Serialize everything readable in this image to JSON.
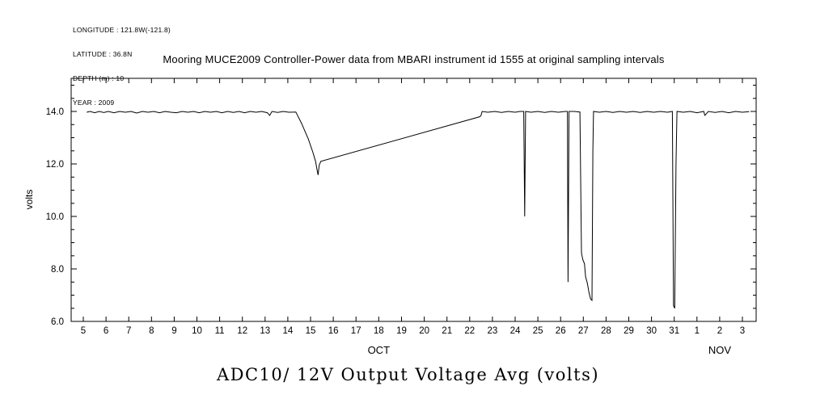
{
  "metadata": {
    "longitude": "LONGITUDE : 121.8W(-121.8)",
    "latitude": "LATITUDE : 36.8N",
    "depth": "DEPTH (m) : 10",
    "year": "YEAR : 2009"
  },
  "title": "Mooring MUCE2009 Controller-Power data from MBARI instrument id 1555 at original sampling intervals",
  "bottom_title": "ADC10/ 12V Output Voltage Avg (volts)",
  "chart_data": {
    "type": "line",
    "title": "Mooring MUCE2009 Controller-Power data from MBARI instrument id 1555 at original sampling intervals",
    "xlabel": "",
    "ylabel": "volts",
    "xlim": [
      4.466,
      34.605
    ],
    "ylim": [
      6.0,
      15.262
    ],
    "grid": false,
    "line_color": "#000000",
    "y_ticks": [
      {
        "v": 6,
        "label": "6.0"
      },
      {
        "v": 8,
        "label": "8.0"
      },
      {
        "v": 10,
        "label": "10.0"
      },
      {
        "v": 12,
        "label": "12.0"
      },
      {
        "v": 14,
        "label": "14.0"
      }
    ],
    "y_minor_step": 0.5,
    "x_tick_days": [
      5,
      6,
      7,
      8,
      9,
      10,
      11,
      12,
      13,
      14,
      15,
      16,
      17,
      18,
      19,
      20,
      21,
      22,
      23,
      24,
      25,
      26,
      27,
      28,
      29,
      30,
      31,
      32,
      33,
      34
    ],
    "x_tick_labels": [
      "5",
      "6",
      "7",
      "8",
      "9",
      "10",
      "11",
      "12",
      "13",
      "14",
      "15",
      "16",
      "17",
      "18",
      "19",
      "20",
      "21",
      "22",
      "23",
      "24",
      "25",
      "26",
      "27",
      "28",
      "29",
      "30",
      "31",
      "1",
      "2",
      "3"
    ],
    "month_labels": [
      {
        "d": 18,
        "label": "OCT"
      },
      {
        "d": 33,
        "label": "NOV"
      }
    ],
    "series": [
      {
        "name": "ADC10/ 12V Output Voltage Avg (volts)",
        "points": [
          [
            5.15,
            13.97
          ],
          [
            5.3,
            14.0
          ],
          [
            5.5,
            13.95
          ],
          [
            5.7,
            14.0
          ],
          [
            5.9,
            13.96
          ],
          [
            6.1,
            14.0
          ],
          [
            6.35,
            13.95
          ],
          [
            6.6,
            14.0
          ],
          [
            6.85,
            13.97
          ],
          [
            7.1,
            14.0
          ],
          [
            7.35,
            13.94
          ],
          [
            7.6,
            14.0
          ],
          [
            7.85,
            13.97
          ],
          [
            8.1,
            14.0
          ],
          [
            8.35,
            13.95
          ],
          [
            8.6,
            14.0
          ],
          [
            8.85,
            13.97
          ],
          [
            9.1,
            13.95
          ],
          [
            9.35,
            14.0
          ],
          [
            9.6,
            13.97
          ],
          [
            9.85,
            14.0
          ],
          [
            10.1,
            13.95
          ],
          [
            10.35,
            14.0
          ],
          [
            10.6,
            13.97
          ],
          [
            10.85,
            14.0
          ],
          [
            11.1,
            13.95
          ],
          [
            11.35,
            14.0
          ],
          [
            11.6,
            13.96
          ],
          [
            11.85,
            14.0
          ],
          [
            12.1,
            13.95
          ],
          [
            12.35,
            14.0
          ],
          [
            12.6,
            13.97
          ],
          [
            12.85,
            14.0
          ],
          [
            13.1,
            13.95
          ],
          [
            13.2,
            13.85
          ],
          [
            13.3,
            14.0
          ],
          [
            13.55,
            13.96
          ],
          [
            13.8,
            14.0
          ],
          [
            14.05,
            13.97
          ],
          [
            14.35,
            13.98
          ],
          [
            14.6,
            13.55
          ],
          [
            14.9,
            12.95
          ],
          [
            15.1,
            12.45
          ],
          [
            15.22,
            12.1
          ],
          [
            15.28,
            11.8
          ],
          [
            15.33,
            11.58
          ],
          [
            15.38,
            11.95
          ],
          [
            15.45,
            12.1
          ],
          [
            22.45,
            13.8
          ],
          [
            22.5,
            13.85
          ],
          [
            22.55,
            14.0
          ],
          [
            22.8,
            13.97
          ],
          [
            23.1,
            14.0
          ],
          [
            23.4,
            13.96
          ],
          [
            23.7,
            14.0
          ],
          [
            24.0,
            13.97
          ],
          [
            24.2,
            14.0
          ],
          [
            24.38,
            14.0
          ],
          [
            24.42,
            10.0
          ],
          [
            24.46,
            14.0
          ],
          [
            24.7,
            13.97
          ],
          [
            25.0,
            14.0
          ],
          [
            25.3,
            13.96
          ],
          [
            25.6,
            14.0
          ],
          [
            25.9,
            13.97
          ],
          [
            26.2,
            14.0
          ],
          [
            26.3,
            14.0
          ],
          [
            26.33,
            7.5
          ],
          [
            26.37,
            14.0
          ],
          [
            26.6,
            14.0
          ],
          [
            26.85,
            13.98
          ],
          [
            26.92,
            8.6
          ],
          [
            26.98,
            8.35
          ],
          [
            27.05,
            8.2
          ],
          [
            27.1,
            7.7
          ],
          [
            27.18,
            7.45
          ],
          [
            27.25,
            7.1
          ],
          [
            27.32,
            6.85
          ],
          [
            27.38,
            6.8
          ],
          [
            27.42,
            12.5
          ],
          [
            27.45,
            14.0
          ],
          [
            27.7,
            13.97
          ],
          [
            28.0,
            14.0
          ],
          [
            28.3,
            13.96
          ],
          [
            28.6,
            14.0
          ],
          [
            28.9,
            13.97
          ],
          [
            29.2,
            14.0
          ],
          [
            29.5,
            13.96
          ],
          [
            29.8,
            14.0
          ],
          [
            30.1,
            13.97
          ],
          [
            30.4,
            14.0
          ],
          [
            30.7,
            13.97
          ],
          [
            30.92,
            14.0
          ],
          [
            30.97,
            6.6
          ],
          [
            31.02,
            6.5
          ],
          [
            31.08,
            12.0
          ],
          [
            31.12,
            14.0
          ],
          [
            31.4,
            13.97
          ],
          [
            31.7,
            14.0
          ],
          [
            32.0,
            13.95
          ],
          [
            32.3,
            14.0
          ],
          [
            32.35,
            13.85
          ],
          [
            32.5,
            14.0
          ],
          [
            32.8,
            13.96
          ],
          [
            33.1,
            14.0
          ],
          [
            33.4,
            13.95
          ],
          [
            33.7,
            14.0
          ],
          [
            34.0,
            13.97
          ],
          [
            34.3,
            13.99
          ]
        ]
      }
    ]
  }
}
